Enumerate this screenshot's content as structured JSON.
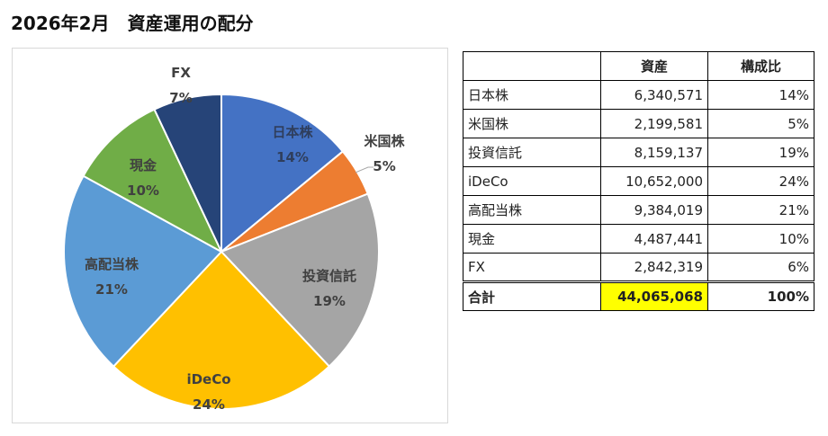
{
  "page": {
    "title": "2026年2月　資産運用の配分"
  },
  "chart_data": {
    "type": "pie",
    "categories": [
      "日本株",
      "米国株",
      "投資信託",
      "iDeCo",
      "高配当株",
      "現金",
      "FX"
    ],
    "values": [
      14,
      5,
      19,
      24,
      21,
      10,
      7
    ],
    "value_labels": [
      "14%",
      "5%",
      "19%",
      "24%",
      "21%",
      "10%",
      "7%"
    ],
    "colors": [
      "#4472C4",
      "#ED7D31",
      "#A5A5A5",
      "#FFC000",
      "#5B9BD5",
      "#70AD47",
      "#264478"
    ],
    "label_colors": [
      "#2f3e5c",
      "#404040",
      "#404040",
      "#404040",
      "#404040",
      "#404040",
      "#404040"
    ]
  },
  "table": {
    "headers": [
      "",
      "資産",
      "構成比"
    ],
    "rows": [
      {
        "name": "日本株",
        "value": "6,340,571",
        "pct": "14%"
      },
      {
        "name": "米国株",
        "value": "2,199,581",
        "pct": "5%"
      },
      {
        "name": "投資信託",
        "value": "8,159,137",
        "pct": "19%"
      },
      {
        "name": "iDeCo",
        "value": "10,652,000",
        "pct": "24%"
      },
      {
        "name": "高配当株",
        "value": "9,384,019",
        "pct": "21%"
      },
      {
        "name": "現金",
        "value": "4,487,441",
        "pct": "10%"
      },
      {
        "name": "FX",
        "value": "2,842,319",
        "pct": "6%"
      }
    ],
    "total": {
      "name": "合計",
      "value": "44,065,068",
      "pct": "100%"
    },
    "total_highlight_color": "#FFFF00"
  }
}
